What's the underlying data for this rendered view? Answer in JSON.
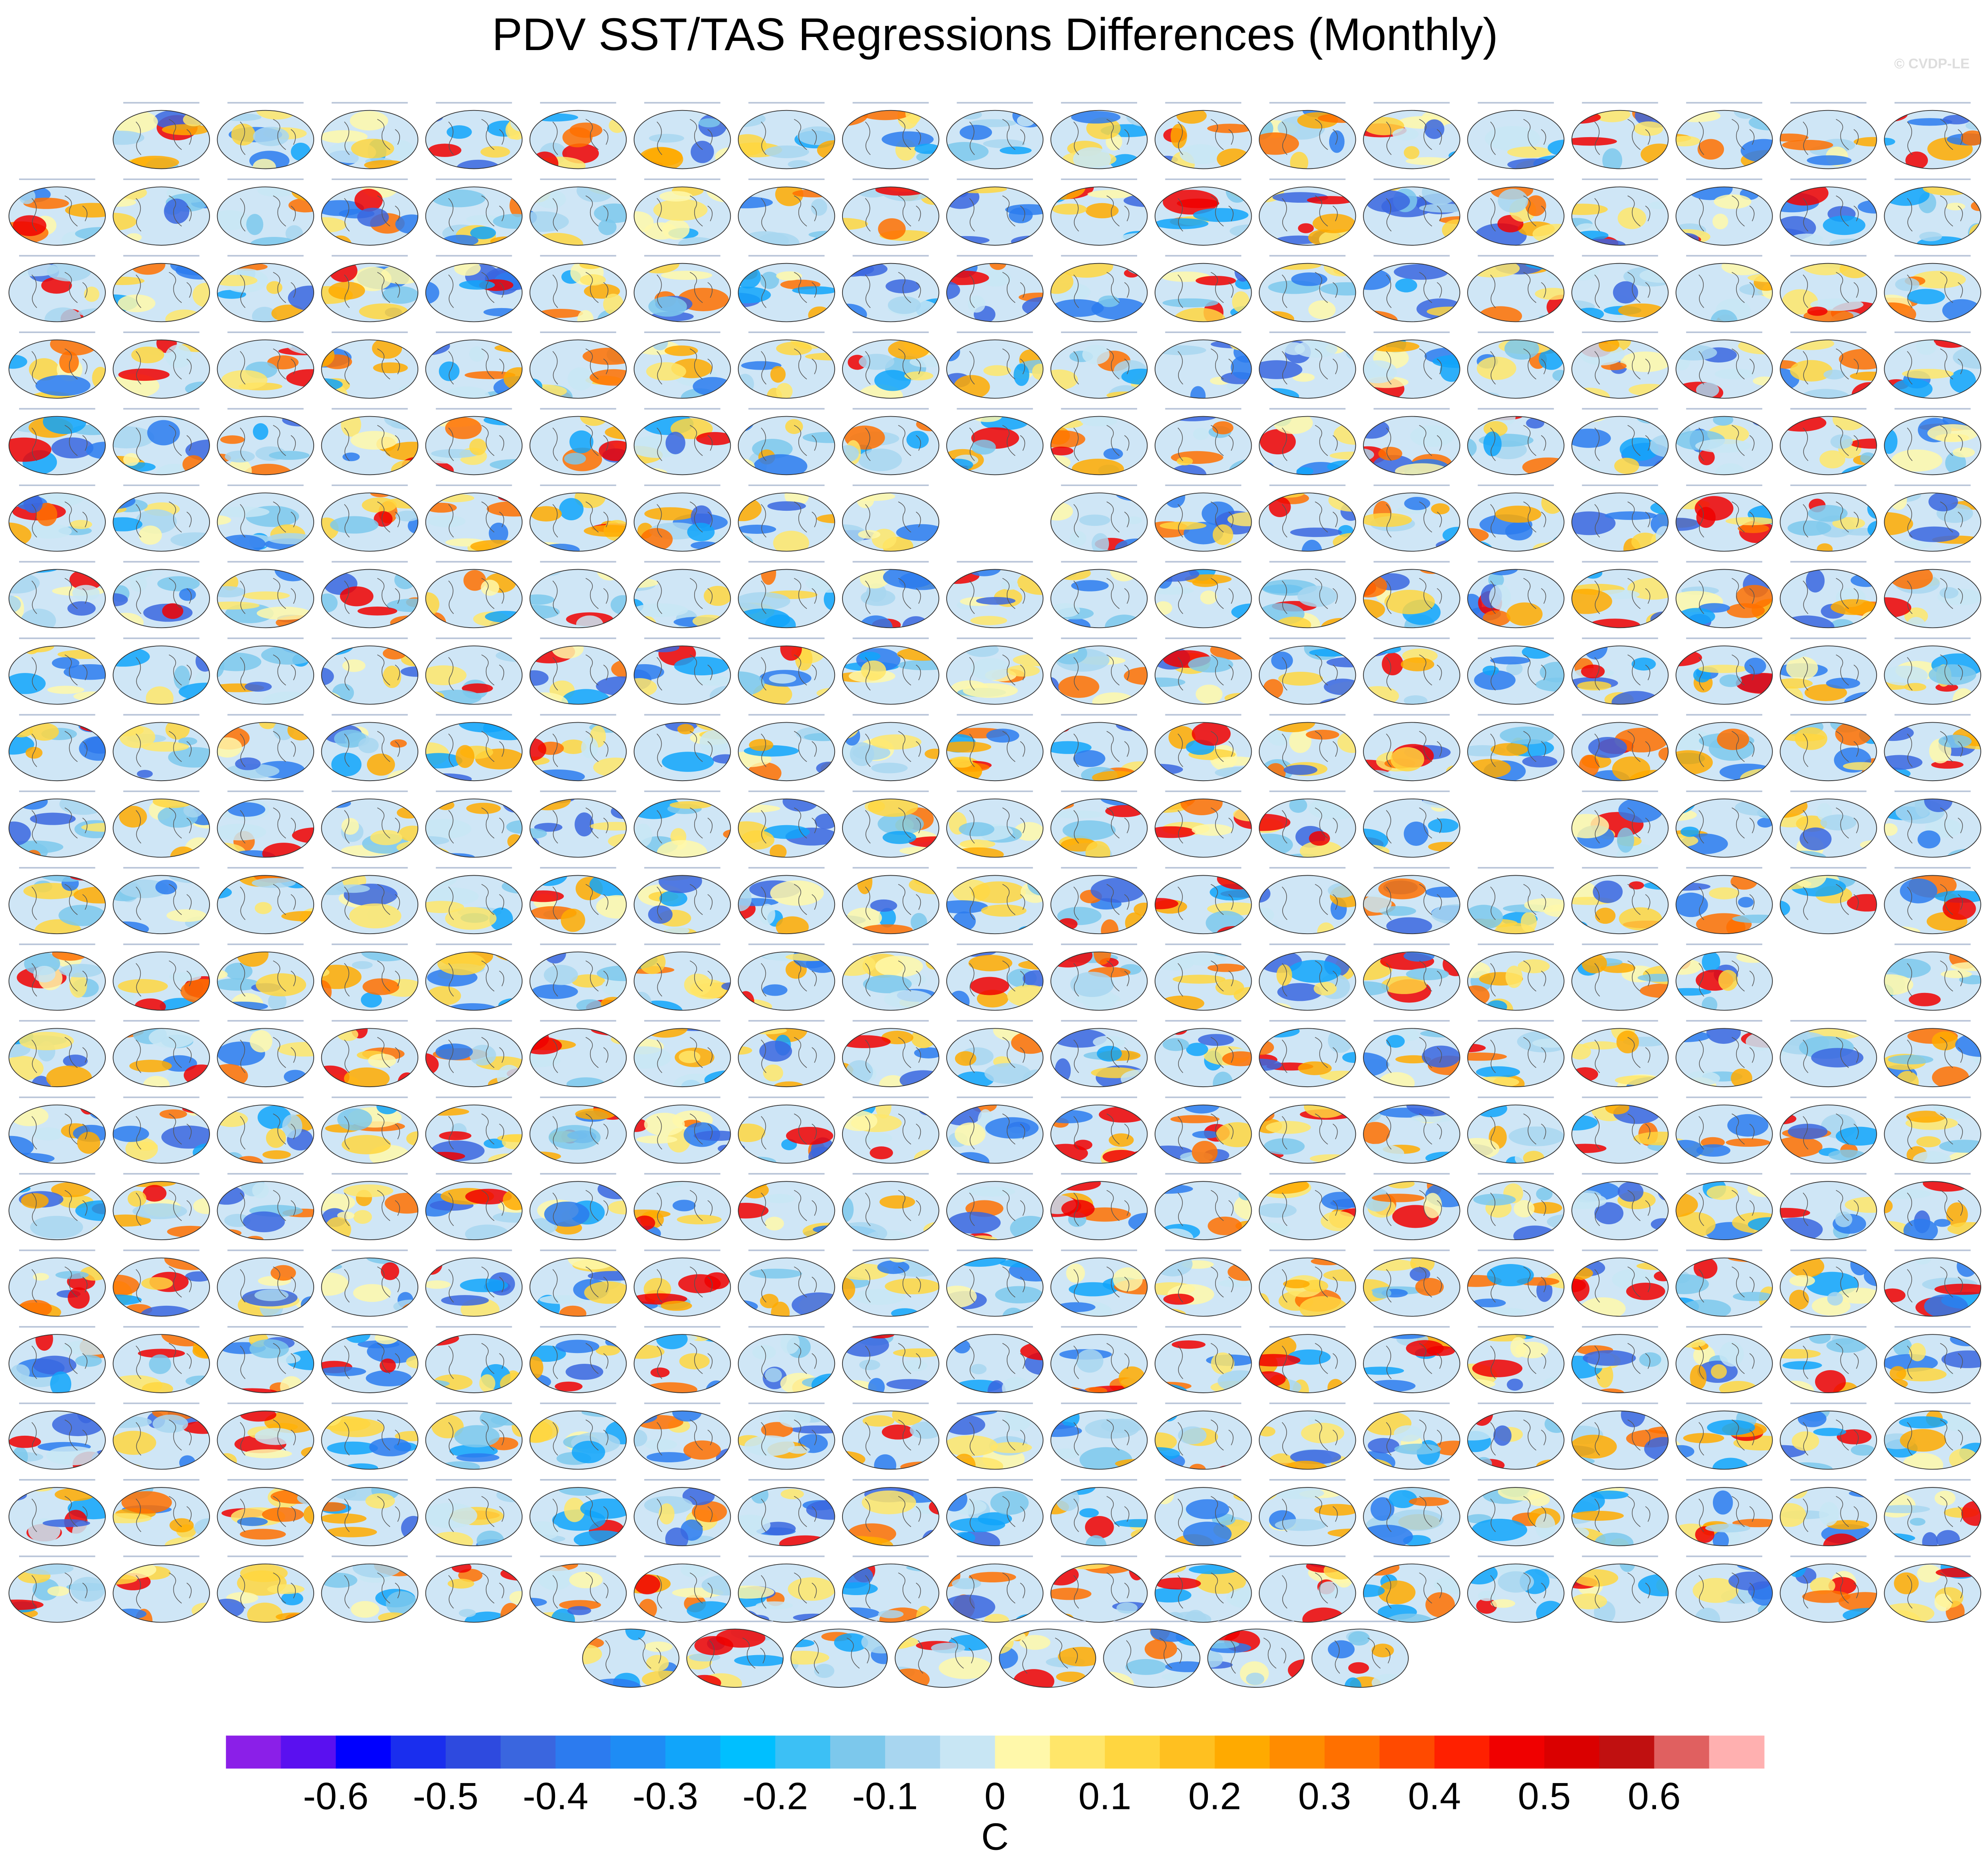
{
  "chart_data": {
    "type": "colorbar",
    "title": "PDV SST/TAS Regressions Differences (Monthly)",
    "watermark": "© CVDP-LE",
    "colorbar": {
      "xlim": [
        -0.7,
        0.7
      ],
      "xticks": [
        -0.6,
        -0.5,
        -0.4,
        -0.3,
        -0.2,
        -0.1,
        0,
        0.1,
        0.2,
        0.3,
        0.4,
        0.5,
        0.6
      ],
      "unit": "C",
      "colors": [
        "#8b1fe8",
        "#5a10f0",
        "#0000ff",
        "#1a2eee",
        "#2e4adf",
        "#3a66df",
        "#2c7bef",
        "#1e8cf5",
        "#11a5fa",
        "#00bfff",
        "#3cc0f5",
        "#7cc8ec",
        "#a8d6f0",
        "#c8e6f4",
        "#fff8aa",
        "#ffe66a",
        "#ffd640",
        "#ffc020",
        "#ffaa00",
        "#ff8c00",
        "#ff7000",
        "#ff4a00",
        "#ff2000",
        "#f00000",
        "#da0000",
        "#c01010",
        "#e06060",
        "#ffb0b0"
      ]
    }
  }
}
